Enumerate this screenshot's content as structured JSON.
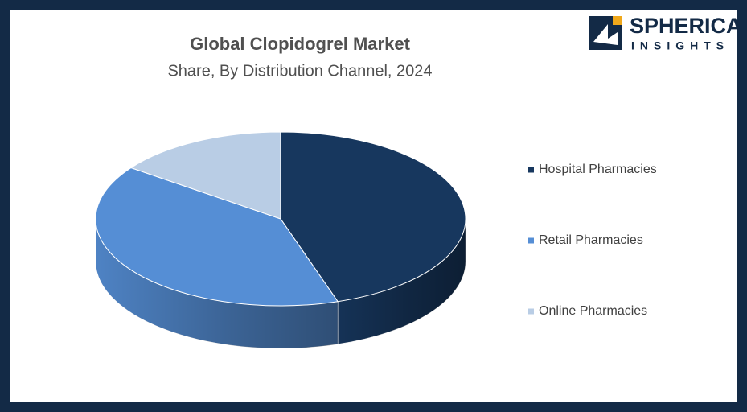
{
  "chart_data": {
    "type": "pie3d",
    "title": "Global Clopidogrel Market",
    "subtitle": "Share, By Distribution Channel, 2024",
    "categories": [
      "Hospital Pharmacies",
      "Retail Pharmacies",
      "Online Pharmacies"
    ],
    "values": [
      45,
      40,
      15
    ],
    "colors": [
      "#17375e",
      "#558ed5",
      "#b9cde5"
    ],
    "legend": "right"
  },
  "logo": {
    "line1": "SPHERICAL",
    "line2": "INSIGHTS"
  }
}
